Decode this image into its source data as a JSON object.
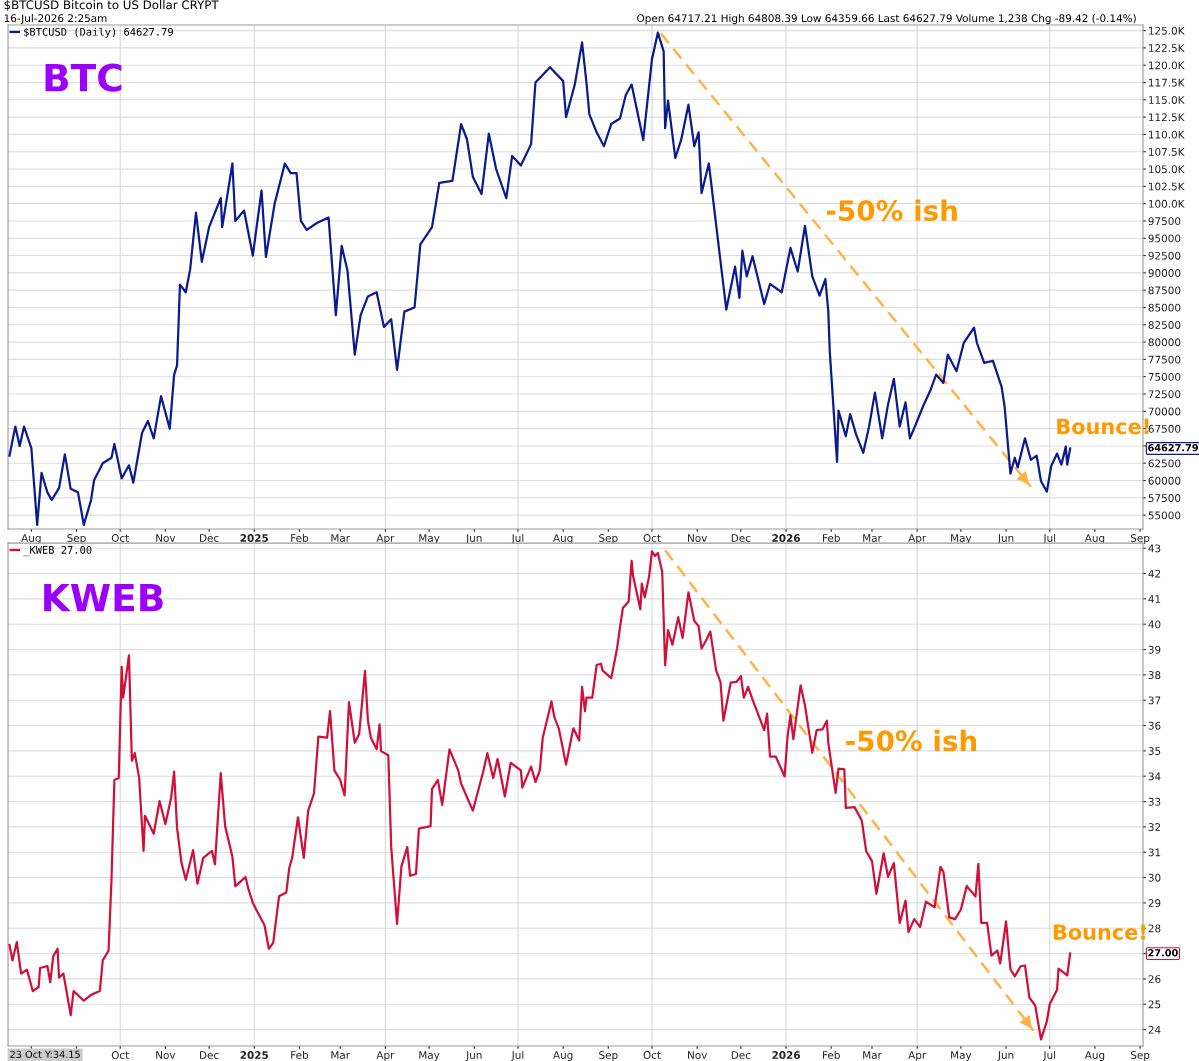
{
  "chart_data": [
    {
      "type": "line",
      "title": "$BTCUSD Bitcoin to US Dollar CRYPT",
      "subtitle": "16-Jul-2026 2:25am",
      "legend": "top left",
      "grid": true,
      "xlim": [
        "2024-07-16",
        "2026-09-03"
      ],
      "xticks": [
        {
          "value": "2024-08-01",
          "label": "Aug"
        },
        {
          "value": "2024-09-01",
          "label": "Sep"
        },
        {
          "value": "2024-10-01",
          "label": "Oct"
        },
        {
          "value": "2024-11-01",
          "label": "Nov"
        },
        {
          "value": "2024-12-01",
          "label": "Dec"
        },
        {
          "value": "2025-01-01",
          "label": "2025"
        },
        {
          "value": "2025-02-01",
          "label": "Feb"
        },
        {
          "value": "2025-03-01",
          "label": "Mar"
        },
        {
          "value": "2025-04-01",
          "label": "Apr"
        },
        {
          "value": "2025-05-01",
          "label": "May"
        },
        {
          "value": "2025-06-01",
          "label": "Jun"
        },
        {
          "value": "2025-07-01",
          "label": "Jul"
        },
        {
          "value": "2025-08-01",
          "label": "Aug"
        },
        {
          "value": "2025-09-01",
          "label": "Sep"
        },
        {
          "value": "2025-10-01",
          "label": "Oct"
        },
        {
          "value": "2025-11-01",
          "label": "Nov"
        },
        {
          "value": "2025-12-01",
          "label": "Dec"
        },
        {
          "value": "2026-01-01",
          "label": "2026"
        },
        {
          "value": "2026-02-01",
          "label": "Feb"
        },
        {
          "value": "2026-03-01",
          "label": "Mar"
        },
        {
          "value": "2026-04-01",
          "label": "Apr"
        },
        {
          "value": "2026-05-01",
          "label": "May"
        },
        {
          "value": "2026-06-01",
          "label": "Jun"
        },
        {
          "value": "2026-07-01",
          "label": "Jul"
        },
        {
          "value": "2026-08-01",
          "label": "Aug"
        },
        {
          "value": "2026-09-01",
          "label": "Sep"
        }
      ],
      "ylim": [
        53000,
        125800
      ],
      "yticks": [
        55000,
        57500,
        60000,
        62500,
        {
          "value": 65000,
          "label": null
        },
        67500,
        70000,
        72500,
        75000,
        77500,
        80000,
        82500,
        85000,
        87500,
        90000,
        92500,
        95000,
        97500,
        {
          "value": 100000,
          "label": "100.0K"
        },
        {
          "value": 102500,
          "label": "102.5K"
        },
        {
          "value": 105000,
          "label": "105.0K"
        },
        {
          "value": 107500,
          "label": "107.5K"
        },
        {
          "value": 110000,
          "label": "110.0K"
        },
        {
          "value": 112500,
          "label": "112.5K"
        },
        {
          "value": 115000,
          "label": "115.0K"
        },
        {
          "value": 117500,
          "label": "117.5K"
        },
        {
          "value": 120000,
          "label": "120.0K"
        },
        {
          "value": 122500,
          "label": "122.5K"
        },
        {
          "value": 125000,
          "label": "125.0K"
        }
      ],
      "series": [
        {
          "name": "$BTCUSD (Daily) 64627.79",
          "color": "#0b1a8c",
          "x": [
            "2024-07-17",
            "2024-07-21",
            "2024-07-24",
            "2024-07-27",
            "2024-08-01",
            "2024-08-05",
            "2024-08-08",
            "2024-08-12",
            "2024-08-15",
            "2024-08-20",
            "2024-08-24",
            "2024-08-28",
            "2024-09-02",
            "2024-09-06",
            "2024-09-11",
            "2024-09-13",
            "2024-09-19",
            "2024-09-25",
            "2024-09-27",
            "2024-10-02",
            "2024-10-07",
            "2024-10-10",
            "2024-10-16",
            "2024-10-20",
            "2024-10-24",
            "2024-10-29",
            "2024-11-04",
            "2024-11-07",
            "2024-11-09",
            "2024-11-11",
            "2024-11-15",
            "2024-11-18",
            "2024-11-22",
            "2024-11-26",
            "2024-12-01",
            "2024-12-09",
            "2024-12-10",
            "2024-12-17",
            "2024-12-19",
            "2024-12-25",
            "2024-12-31",
            "2025-01-06",
            "2025-01-09",
            "2025-01-15",
            "2025-01-22",
            "2025-01-26",
            "2025-01-30",
            "2025-02-02",
            "2025-02-06",
            "2025-02-13",
            "2025-02-21",
            "2025-02-26",
            "2025-03-02",
            "2025-03-06",
            "2025-03-11",
            "2025-03-15",
            "2025-03-20",
            "2025-03-26",
            "2025-03-31",
            "2025-04-05",
            "2025-04-09",
            "2025-04-14",
            "2025-04-21",
            "2025-04-25",
            "2025-05-03",
            "2025-05-08",
            "2025-05-17",
            "2025-05-23",
            "2025-05-27",
            "2025-05-31",
            "2025-06-06",
            "2025-06-11",
            "2025-06-16",
            "2025-06-23",
            "2025-06-27",
            "2025-07-03",
            "2025-07-10",
            "2025-07-13",
            "2025-07-23",
            "2025-08-01",
            "2025-08-03",
            "2025-08-09",
            "2025-08-14",
            "2025-08-17",
            "2025-08-19",
            "2025-08-24",
            "2025-08-29",
            "2025-09-03",
            "2025-09-09",
            "2025-09-13",
            "2025-09-17",
            "2025-09-25",
            "2025-10-01",
            "2025-10-05",
            "2025-10-09",
            "2025-10-10",
            "2025-10-12",
            "2025-10-17",
            "2025-10-21",
            "2025-10-26",
            "2025-10-30",
            "2025-11-02",
            "2025-11-04",
            "2025-11-09",
            "2025-11-15",
            "2025-11-21",
            "2025-11-27",
            "2025-11-30",
            "2025-12-02",
            "2025-12-05",
            "2025-12-09",
            "2025-12-17",
            "2025-12-21",
            "2025-12-29",
            "2026-01-04",
            "2026-01-09",
            "2026-01-14",
            "2026-01-19",
            "2026-01-24",
            "2026-01-28",
            "2026-01-30",
            "2026-01-31",
            "2026-02-05",
            "2026-02-06",
            "2026-02-11",
            "2026-02-14",
            "2026-02-18",
            "2026-02-23",
            "2026-02-27",
            "2026-03-03",
            "2026-03-08",
            "2026-03-12",
            "2026-03-16",
            "2026-03-20",
            "2026-03-24",
            "2026-03-27",
            "2026-03-31",
            "2026-04-05",
            "2026-04-10",
            "2026-04-14",
            "2026-04-19",
            "2026-04-22",
            "2026-04-28",
            "2026-05-03",
            "2026-05-10",
            "2026-05-12",
            "2026-05-17",
            "2026-05-23",
            "2026-05-29",
            "2026-05-31",
            "2026-06-04",
            "2026-06-07",
            "2026-06-09",
            "2026-06-14",
            "2026-06-18",
            "2026-06-22",
            "2026-06-25",
            "2026-06-29",
            "2026-07-02",
            "2026-07-06",
            "2026-07-09",
            "2026-07-12",
            "2026-07-13",
            "2026-07-15"
          ],
          "values": [
            63600,
            67800,
            65000,
            67800,
            64700,
            53600,
            61100,
            58300,
            57200,
            58900,
            63800,
            58800,
            58300,
            53600,
            57200,
            60000,
            62500,
            63300,
            65300,
            60300,
            62200,
            59700,
            66900,
            68600,
            66100,
            72200,
            67500,
            75300,
            76600,
            88300,
            87200,
            90500,
            98700,
            91600,
            96600,
            100800,
            96600,
            105800,
            97500,
            99000,
            92500,
            101900,
            92300,
            100000,
            105800,
            104400,
            104400,
            97500,
            96200,
            97200,
            98000,
            83900,
            93900,
            90300,
            78200,
            83900,
            86600,
            87200,
            82200,
            83300,
            76000,
            84400,
            85000,
            94100,
            96600,
            103000,
            103300,
            111500,
            109300,
            103900,
            101400,
            110100,
            105000,
            100800,
            106900,
            105500,
            108600,
            117500,
            119700,
            117700,
            112500,
            117200,
            123300,
            117500,
            112900,
            110300,
            108300,
            111500,
            112300,
            115700,
            117200,
            109200,
            120900,
            124700,
            122000,
            110900,
            114900,
            106600,
            109200,
            114300,
            108300,
            110300,
            101500,
            105800,
            95200,
            84700,
            90900,
            86400,
            93200,
            89500,
            92400,
            85500,
            88400,
            87200,
            93600,
            90200,
            96800,
            89500,
            86700,
            89100,
            84400,
            78700,
            62700,
            70100,
            66400,
            69600,
            66700,
            64000,
            67800,
            72700,
            66100,
            71000,
            74700,
            67800,
            71300,
            66100,
            68100,
            70700,
            73000,
            75300,
            74100,
            78200,
            75800,
            79900,
            82100,
            79900,
            77000,
            77300,
            73500,
            70700,
            61000,
            63300,
            61900,
            66100,
            63000,
            63600,
            59900,
            58400,
            62100,
            63900,
            62300,
            64900,
            62300,
            64627.79
          ]
        },
        {
          "type": "line",
          "line_style": "dashed",
          "color": "#ffb347",
          "x": [
            "2025-10-07",
            "2026-06-18"
          ],
          "values": [
            124600,
            59100
          ]
        }
      ],
      "annotations": [
        "BTC",
        "-50% ish",
        "Bounce!",
        "Open 64717.21 High 64808.39 Low 64359.66 Last 64627.79 Volume 1,238 Chg -89.42 (-0.14%)",
        "64627.79"
      ]
    },
    {
      "type": "line",
      "legend": "top left",
      "grid": true,
      "xlim": [
        "2024-07-16",
        "2026-09-03"
      ],
      "xticks": [
        {
          "value": "2024-08-01",
          "label": null
        },
        {
          "value": "2024-09-01",
          "label": null
        },
        {
          "value": "2024-10-01",
          "label": "Oct"
        },
        {
          "value": "2024-11-01",
          "label": "Nov"
        },
        {
          "value": "2024-12-01",
          "label": "Dec"
        },
        {
          "value": "2025-01-01",
          "label": "2025"
        },
        {
          "value": "2025-02-01",
          "label": "Feb"
        },
        {
          "value": "2025-03-01",
          "label": "Mar"
        },
        {
          "value": "2025-04-01",
          "label": "Apr"
        },
        {
          "value": "2025-05-01",
          "label": "May"
        },
        {
          "value": "2025-06-01",
          "label": "Jun"
        },
        {
          "value": "2025-07-01",
          "label": "Jul"
        },
        {
          "value": "2025-08-01",
          "label": "Aug"
        },
        {
          "value": "2025-09-01",
          "label": "Sep"
        },
        {
          "value": "2025-10-01",
          "label": "Oct"
        },
        {
          "value": "2025-11-01",
          "label": "Nov"
        },
        {
          "value": "2025-12-01",
          "label": "Dec"
        },
        {
          "value": "2026-01-01",
          "label": "2026"
        },
        {
          "value": "2026-02-01",
          "label": "Feb"
        },
        {
          "value": "2026-03-01",
          "label": "Mar"
        },
        {
          "value": "2026-04-01",
          "label": "Apr"
        },
        {
          "value": "2026-05-01",
          "label": "May"
        },
        {
          "value": "2026-06-01",
          "label": "Jun"
        },
        {
          "value": "2026-07-01",
          "label": "Jul"
        },
        {
          "value": "2026-08-01",
          "label": "Aug"
        },
        {
          "value": "2026-09-01",
          "label": "Sep"
        }
      ],
      "ylim": [
        23.35,
        43.2
      ],
      "yticks": [
        24,
        25,
        26,
        {
          "value": 27,
          "label": null
        },
        28,
        29,
        30,
        31,
        32,
        33,
        34,
        35,
        36,
        37,
        38,
        39,
        40,
        41,
        42,
        43
      ],
      "series": [
        {
          "name": "_KWEB 27.00",
          "color": "#d0103a",
          "x": [
            "2024-07-17",
            "2024-07-19",
            "2024-07-22",
            "2024-07-25",
            "2024-07-29",
            "2024-08-02",
            "2024-08-06",
            "2024-08-07",
            "2024-08-12",
            "2024-08-14",
            "2024-08-16",
            "2024-08-19",
            "2024-08-20",
            "2024-08-23",
            "2024-08-28",
            "2024-08-30",
            "2024-09-06",
            "2024-09-11",
            "2024-09-17",
            "2024-09-19",
            "2024-09-23",
            "2024-09-25",
            "2024-09-27",
            "2024-09-30",
            "2024-10-02",
            "2024-10-03",
            "2024-10-07",
            "2024-10-09",
            "2024-10-11",
            "2024-10-14",
            "2024-10-17",
            "2024-10-18",
            "2024-10-24",
            "2024-10-28",
            "2024-11-01",
            "2024-11-05",
            "2024-11-07",
            "2024-11-09",
            "2024-11-12",
            "2024-11-15",
            "2024-11-20",
            "2024-11-23",
            "2024-11-27",
            "2024-12-03",
            "2024-12-05",
            "2024-12-09",
            "2024-12-12",
            "2024-12-17",
            "2024-12-19",
            "2024-12-26",
            "2024-12-28",
            "2024-12-31",
            "2025-01-03",
            "2025-01-08",
            "2025-01-11",
            "2025-01-14",
            "2025-01-18",
            "2025-01-23",
            "2025-01-25",
            "2025-01-27",
            "2025-01-31",
            "2025-02-04",
            "2025-02-07",
            "2025-02-11",
            "2025-02-14",
            "2025-02-20",
            "2025-02-22",
            "2025-02-25",
            "2025-03-01",
            "2025-03-04",
            "2025-03-07",
            "2025-03-11",
            "2025-03-14",
            "2025-03-18",
            "2025-03-20",
            "2025-03-22",
            "2025-03-26",
            "2025-03-28",
            "2025-03-29",
            "2025-04-03",
            "2025-04-05",
            "2025-04-09",
            "2025-04-12",
            "2025-04-16",
            "2025-04-18",
            "2025-04-22",
            "2025-04-24",
            "2025-05-02",
            "2025-05-03",
            "2025-05-07",
            "2025-05-10",
            "2025-05-15",
            "2025-05-21",
            "2025-05-23",
            "2025-05-31",
            "2025-06-07",
            "2025-06-10",
            "2025-06-14",
            "2025-06-17",
            "2025-06-22",
            "2025-06-26",
            "2025-07-03",
            "2025-07-04",
            "2025-07-10",
            "2025-07-13",
            "2025-07-16",
            "2025-07-18",
            "2025-07-24",
            "2025-07-26",
            "2025-07-29",
            "2025-08-03",
            "2025-08-08",
            "2025-08-12",
            "2025-08-14",
            "2025-08-16",
            "2025-08-17",
            "2025-08-21",
            "2025-08-24",
            "2025-08-27",
            "2025-08-28",
            "2025-09-03",
            "2025-09-07",
            "2025-09-09",
            "2025-09-11",
            "2025-09-15",
            "2025-09-17",
            "2025-09-18",
            "2025-09-23",
            "2025-09-24",
            "2025-09-26",
            "2025-09-29",
            "2025-10-01",
            "2025-10-03",
            "2025-10-05",
            "2025-10-08",
            "2025-10-10",
            "2025-10-12",
            "2025-10-15",
            "2025-10-19",
            "2025-10-22",
            "2025-10-26",
            "2025-10-30",
            "2025-11-02",
            "2025-11-04",
            "2025-11-07",
            "2025-11-10",
            "2025-11-14",
            "2025-11-17",
            "2025-11-19",
            "2025-11-24",
            "2025-11-28",
            "2025-12-01",
            "2025-12-03",
            "2025-12-06",
            "2025-12-09",
            "2025-12-17",
            "2025-12-19",
            "2025-12-21",
            "2025-12-25",
            "2025-12-31",
            "2026-01-02",
            "2026-01-04",
            "2026-01-06",
            "2026-01-11",
            "2026-01-14",
            "2026-01-19",
            "2026-01-22",
            "2026-01-26",
            "2026-01-29",
            "2026-01-30",
            "2026-02-04",
            "2026-02-06",
            "2026-02-10",
            "2026-02-11",
            "2026-02-17",
            "2026-02-22",
            "2026-02-25",
            "2026-03-01",
            "2026-03-04",
            "2026-03-09",
            "2026-03-12",
            "2026-03-16",
            "2026-03-20",
            "2026-03-24",
            "2026-03-26",
            "2026-03-30",
            "2026-04-03",
            "2026-04-07",
            "2026-04-13",
            "2026-04-17",
            "2026-04-19",
            "2026-04-23",
            "2026-04-27",
            "2026-05-01",
            "2026-05-05",
            "2026-05-11",
            "2026-05-13",
            "2026-05-15",
            "2026-05-19",
            "2026-05-22",
            "2026-05-26",
            "2026-05-28",
            "2026-06-01",
            "2026-06-04",
            "2026-06-07",
            "2026-06-11",
            "2026-06-14",
            "2026-06-17",
            "2026-06-21",
            "2026-06-25",
            "2026-06-29",
            "2026-07-01",
            "2026-07-06",
            "2026-07-07",
            "2026-07-13",
            "2026-07-15"
          ],
          "values": [
            27.34,
            26.73,
            27.45,
            26.21,
            26.36,
            25.52,
            25.68,
            26.43,
            26.51,
            25.87,
            26.89,
            27.19,
            26.05,
            26.21,
            24.57,
            25.52,
            25.14,
            25.37,
            25.52,
            26.73,
            27.11,
            29.91,
            33.85,
            33.93,
            38.32,
            37.1,
            38.77,
            34.61,
            34.91,
            33.93,
            31.05,
            32.44,
            31.73,
            33.02,
            32.11,
            33.17,
            34.18,
            31.96,
            30.6,
            29.91,
            31.08,
            29.76,
            30.78,
            31.05,
            30.52,
            34.12,
            32.03,
            30.82,
            29.66,
            30.02,
            29.54,
            29.01,
            28.66,
            28.13,
            27.19,
            27.42,
            29.26,
            29.41,
            30.37,
            30.78,
            32.38,
            30.78,
            32.64,
            33.32,
            35.56,
            35.52,
            36.57,
            34.23,
            33.85,
            33.24,
            36.92,
            35.32,
            35.67,
            38.16,
            36.2,
            35.52,
            35.06,
            36.05,
            34.99,
            34.83,
            31.2,
            28.17,
            30.44,
            31.2,
            30.07,
            30.14,
            31.93,
            32.03,
            33.5,
            33.85,
            32.87,
            35.06,
            34.23,
            33.7,
            32.64,
            34.15,
            34.91,
            33.93,
            34.68,
            33.2,
            34.53,
            34.23,
            33.55,
            34.38,
            33.77,
            34.23,
            35.52,
            36.95,
            36.32,
            35.89,
            34.46,
            35.89,
            35.41,
            37.53,
            36.57,
            37.1,
            37.1,
            38.39,
            38.44,
            38.18,
            37.87,
            39.04,
            39.86,
            40.64,
            40.9,
            42.5,
            41.91,
            40.59,
            41.6,
            41.06,
            41.88,
            42.88,
            42.69,
            42.81,
            42.07,
            38.37,
            39.77,
            39.19,
            40.28,
            39.46,
            41.26,
            40.13,
            39.92,
            39.04,
            39.35,
            39.71,
            38.18,
            37.72,
            36.19,
            37.69,
            37.72,
            37.95,
            37.1,
            37.53,
            37.02,
            35.82,
            36.47,
            34.77,
            34.77,
            33.99,
            35.54,
            36.4,
            35.46,
            37.59,
            36.79,
            34.92,
            35.82,
            35.85,
            36.19,
            35.31,
            33.34,
            34.3,
            34.27,
            32.75,
            32.78,
            32.25,
            31.04,
            30.65,
            29.36,
            30.96,
            30.03,
            30.57,
            28.21,
            29.09,
            27.85,
            28.36,
            28.05,
            29.05,
            28.83,
            30.42,
            30.23,
            28.43,
            28.36,
            28.74,
            29.67,
            29.25,
            30.54,
            28.21,
            28.21,
            26.92,
            27.12,
            26.61,
            28.27,
            26.38,
            26.1,
            26.5,
            26.53,
            25.26,
            24.95,
            23.61,
            24.32,
            25.01,
            25.57,
            26.41,
            26.14,
            27.0
          ]
        },
        {
          "type": "line",
          "line_style": "dashed",
          "color": "#ffb347",
          "x": [
            "2025-10-10",
            "2026-06-20"
          ],
          "values": [
            42.92,
            23.95
          ]
        }
      ],
      "annotations": [
        "KWEB",
        "-50% ish",
        "Bounce!",
        "23 Oct Y:34.15",
        "27.00"
      ]
    }
  ]
}
